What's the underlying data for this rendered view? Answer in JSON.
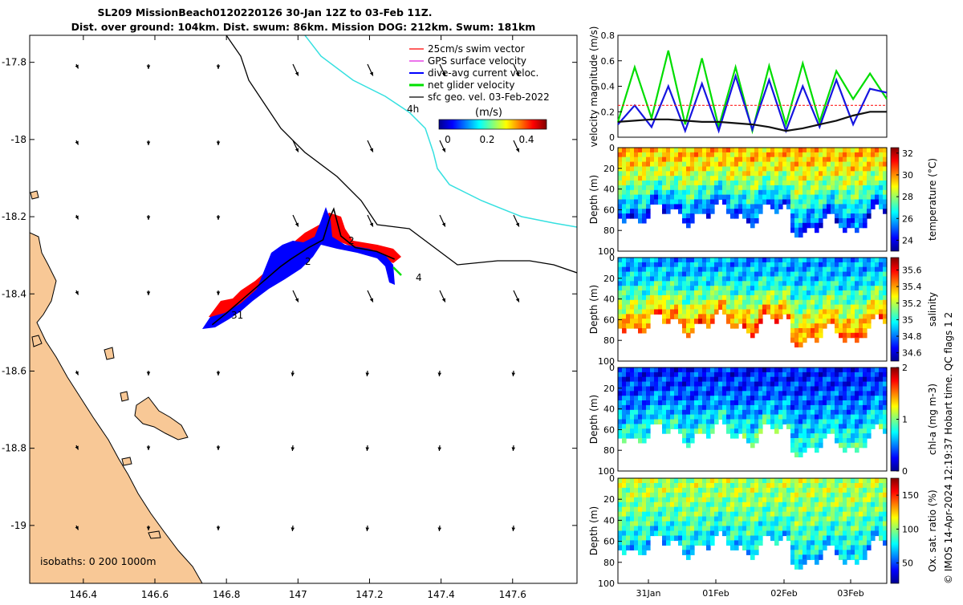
{
  "figure": {
    "title_line1": "SL209 MissionBeach0120220126 30-Jan 12Z to 03-Feb 11Z.",
    "title_line2": "Dist. over ground: 104km. Dist. swum: 86km. Mission DOG: 212km. Swum: 181km",
    "credit": "© IMOS 14-Apr-2024 12:19:37 Hobart time. QC flags 1  2",
    "colors": {
      "land": "#f8c896",
      "coast": "#000000",
      "isobath_cyan": "#35e0e0",
      "swim": "#ff0000",
      "gps": "#e020e0",
      "diveavg": "#0000ff",
      "net": "#00e000",
      "geo": "#000000"
    }
  },
  "map": {
    "legend": {
      "items": [
        "25cm/s swim vector",
        "GPS surface velocity",
        "dive-avg current veloc.",
        "net glider velocity",
        "sfc geo. vel. 03-Feb-2022"
      ],
      "scale_label": "4h",
      "colorbar_title": "(m/s)",
      "colorbar_ticks": [
        "0",
        "0.2",
        "0.4"
      ]
    },
    "isobaths_label": "isobaths: 0   200  1000m",
    "day_labels": [
      "31",
      "2",
      "2",
      "3",
      "4"
    ]
  },
  "chart_data": [
    {
      "type": "scatter",
      "title": "",
      "xlabel": "",
      "ylabel": "",
      "xlim": [
        146.25,
        147.78
      ],
      "ylim": [
        -19.15,
        -17.73
      ],
      "x_ticks": [
        "146.4",
        "146.6",
        "146.8",
        "147",
        "147.2",
        "147.4",
        "147.6"
      ],
      "x_tick_values": [
        146.4,
        146.6,
        146.8,
        147.0,
        147.2,
        147.4,
        147.6
      ],
      "y_ticks": [
        "-17.8",
        "-18",
        "-18.2",
        "-18.4",
        "-18.6",
        "-18.8",
        "-19"
      ],
      "y_tick_values": [
        -17.8,
        -18.0,
        -18.2,
        -18.4,
        -18.6,
        -18.8,
        -19.0
      ],
      "glider_track": [
        [
          146.76,
          -18.48
        ],
        [
          146.8,
          -18.45
        ],
        [
          146.85,
          -18.41
        ],
        [
          146.9,
          -18.37
        ],
        [
          146.95,
          -18.33
        ],
        [
          146.98,
          -18.31
        ],
        [
          147.03,
          -18.28
        ],
        [
          147.07,
          -18.26
        ],
        [
          147.09,
          -18.2
        ],
        [
          147.1,
          -18.18
        ],
        [
          147.12,
          -18.25
        ],
        [
          147.16,
          -18.28
        ],
        [
          147.22,
          -18.29
        ],
        [
          147.27,
          -18.31
        ]
      ]
    },
    {
      "type": "line",
      "title": "",
      "xlabel": "",
      "ylabel": "velocity magnitude (m/s)",
      "ylim": [
        0,
        0.8
      ],
      "y_ticks": [
        "0",
        "0.2",
        "0.4",
        "0.6",
        "0.8"
      ],
      "x": [
        0,
        0.25,
        0.5,
        0.75,
        1,
        1.25,
        1.5,
        1.75,
        2,
        2.25,
        2.5,
        2.75,
        3,
        3.25,
        3.5,
        3.75,
        4
      ],
      "series": [
        {
          "color": "#00dd00",
          "values": [
            0.12,
            0.55,
            0.15,
            0.68,
            0.1,
            0.62,
            0.08,
            0.55,
            0.05,
            0.56,
            0.1,
            0.58,
            0.12,
            0.52,
            0.3,
            0.5,
            0.3
          ]
        },
        {
          "color": "#1515e0",
          "values": [
            0.1,
            0.25,
            0.08,
            0.4,
            0.05,
            0.42,
            0.05,
            0.48,
            0.06,
            0.45,
            0.05,
            0.4,
            0.08,
            0.45,
            0.1,
            0.38,
            0.35
          ]
        },
        {
          "color": "#ff2020",
          "values": [
            0.25,
            0.25,
            0.25,
            0.25,
            0.25,
            0.25,
            0.25,
            0.25,
            0.25,
            0.25,
            0.25,
            0.25,
            0.25,
            0.25,
            0.25,
            0.25,
            0.25
          ]
        },
        {
          "color": "#111111",
          "values": [
            0.12,
            0.13,
            0.14,
            0.14,
            0.13,
            0.12,
            0.12,
            0.11,
            0.1,
            0.08,
            0.05,
            0.07,
            0.1,
            0.13,
            0.17,
            0.2,
            0.2
          ]
        }
      ]
    },
    {
      "type": "heatmap",
      "ylabel": "Depth (m)",
      "colorbar_label": "temperature (°C)",
      "colorbar_ticks": [
        "24",
        "26",
        "28",
        "30",
        "32"
      ],
      "colorbar_values": [
        24,
        26,
        28,
        30,
        32
      ],
      "clim": [
        23,
        32.5
      ],
      "y_ticks": [
        "0",
        "20",
        "40",
        "60",
        "80",
        "100"
      ],
      "surface_value": 29.5,
      "bottom_value": 24.5
    },
    {
      "type": "heatmap",
      "ylabel": "Depth (m)",
      "colorbar_label": "salinity",
      "colorbar_ticks": [
        "34.6",
        "34.8",
        "35",
        "35.2",
        "35.4",
        "35.6"
      ],
      "colorbar_values": [
        34.6,
        34.8,
        35.0,
        35.2,
        35.4,
        35.6
      ],
      "clim": [
        34.5,
        35.75
      ],
      "y_ticks": [
        "0",
        "20",
        "40",
        "60",
        "80",
        "100"
      ],
      "surface_value": 34.85,
      "bottom_value": 35.5
    },
    {
      "type": "heatmap",
      "ylabel": "Depth (m)",
      "colorbar_label": "chl-a (mg m-3)",
      "colorbar_ticks": [
        "0",
        "1",
        "2"
      ],
      "colorbar_values": [
        0,
        1,
        2
      ],
      "clim": [
        0,
        2
      ],
      "y_ticks": [
        "0",
        "20",
        "40",
        "60",
        "80",
        "100"
      ],
      "surface_value": 0.3,
      "bottom_value": 0.9
    },
    {
      "type": "heatmap",
      "ylabel": "Depth (m)",
      "colorbar_label": "Ox. sat. ratio (%)",
      "colorbar_ticks": [
        "50",
        "100",
        "150"
      ],
      "colorbar_values": [
        50,
        100,
        150
      ],
      "clim": [
        20,
        175
      ],
      "y_ticks": [
        "0",
        "20",
        "40",
        "60",
        "80",
        "100"
      ],
      "x_ticks": [
        "31Jan",
        "01Feb",
        "02Feb",
        "03Feb"
      ],
      "surface_value": 105,
      "bottom_value": 70
    }
  ]
}
